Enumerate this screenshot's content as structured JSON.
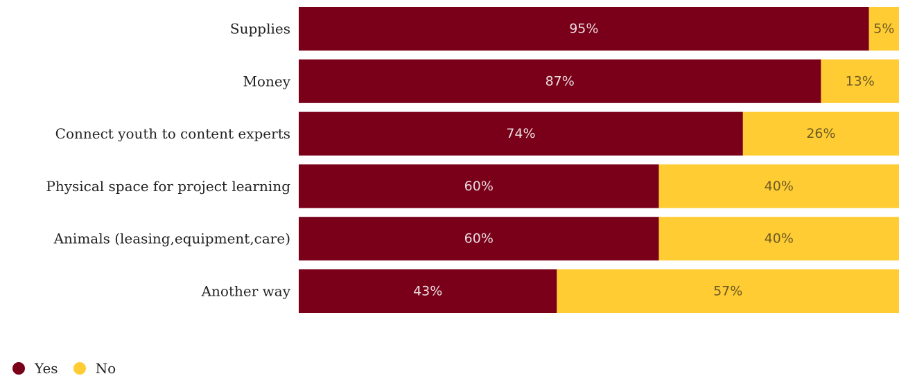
{
  "chart_data": {
    "type": "bar",
    "orientation": "horizontal",
    "stacked": true,
    "percent_stacked": true,
    "categories": [
      "Supplies",
      "Money",
      "Connect youth to content experts",
      "Physical space for project learning",
      "Animals (leasing,equipment,care)",
      "Another way"
    ],
    "series": [
      {
        "name": "Yes",
        "color": "#7a0019",
        "label_color": "#e8dde0",
        "values": [
          95,
          87,
          74,
          60,
          60,
          43
        ],
        "labels": [
          "95%",
          "87%",
          "74%",
          "60%",
          "60%",
          "43%"
        ]
      },
      {
        "name": "No",
        "color": "#ffcc33",
        "label_color": "#6b5a25",
        "values": [
          5,
          13,
          26,
          40,
          40,
          57
        ],
        "labels": [
          "5%",
          "13%",
          "26%",
          "40%",
          "40%",
          "57%"
        ]
      }
    ],
    "legend_position": "bottom-left",
    "grid": false
  }
}
